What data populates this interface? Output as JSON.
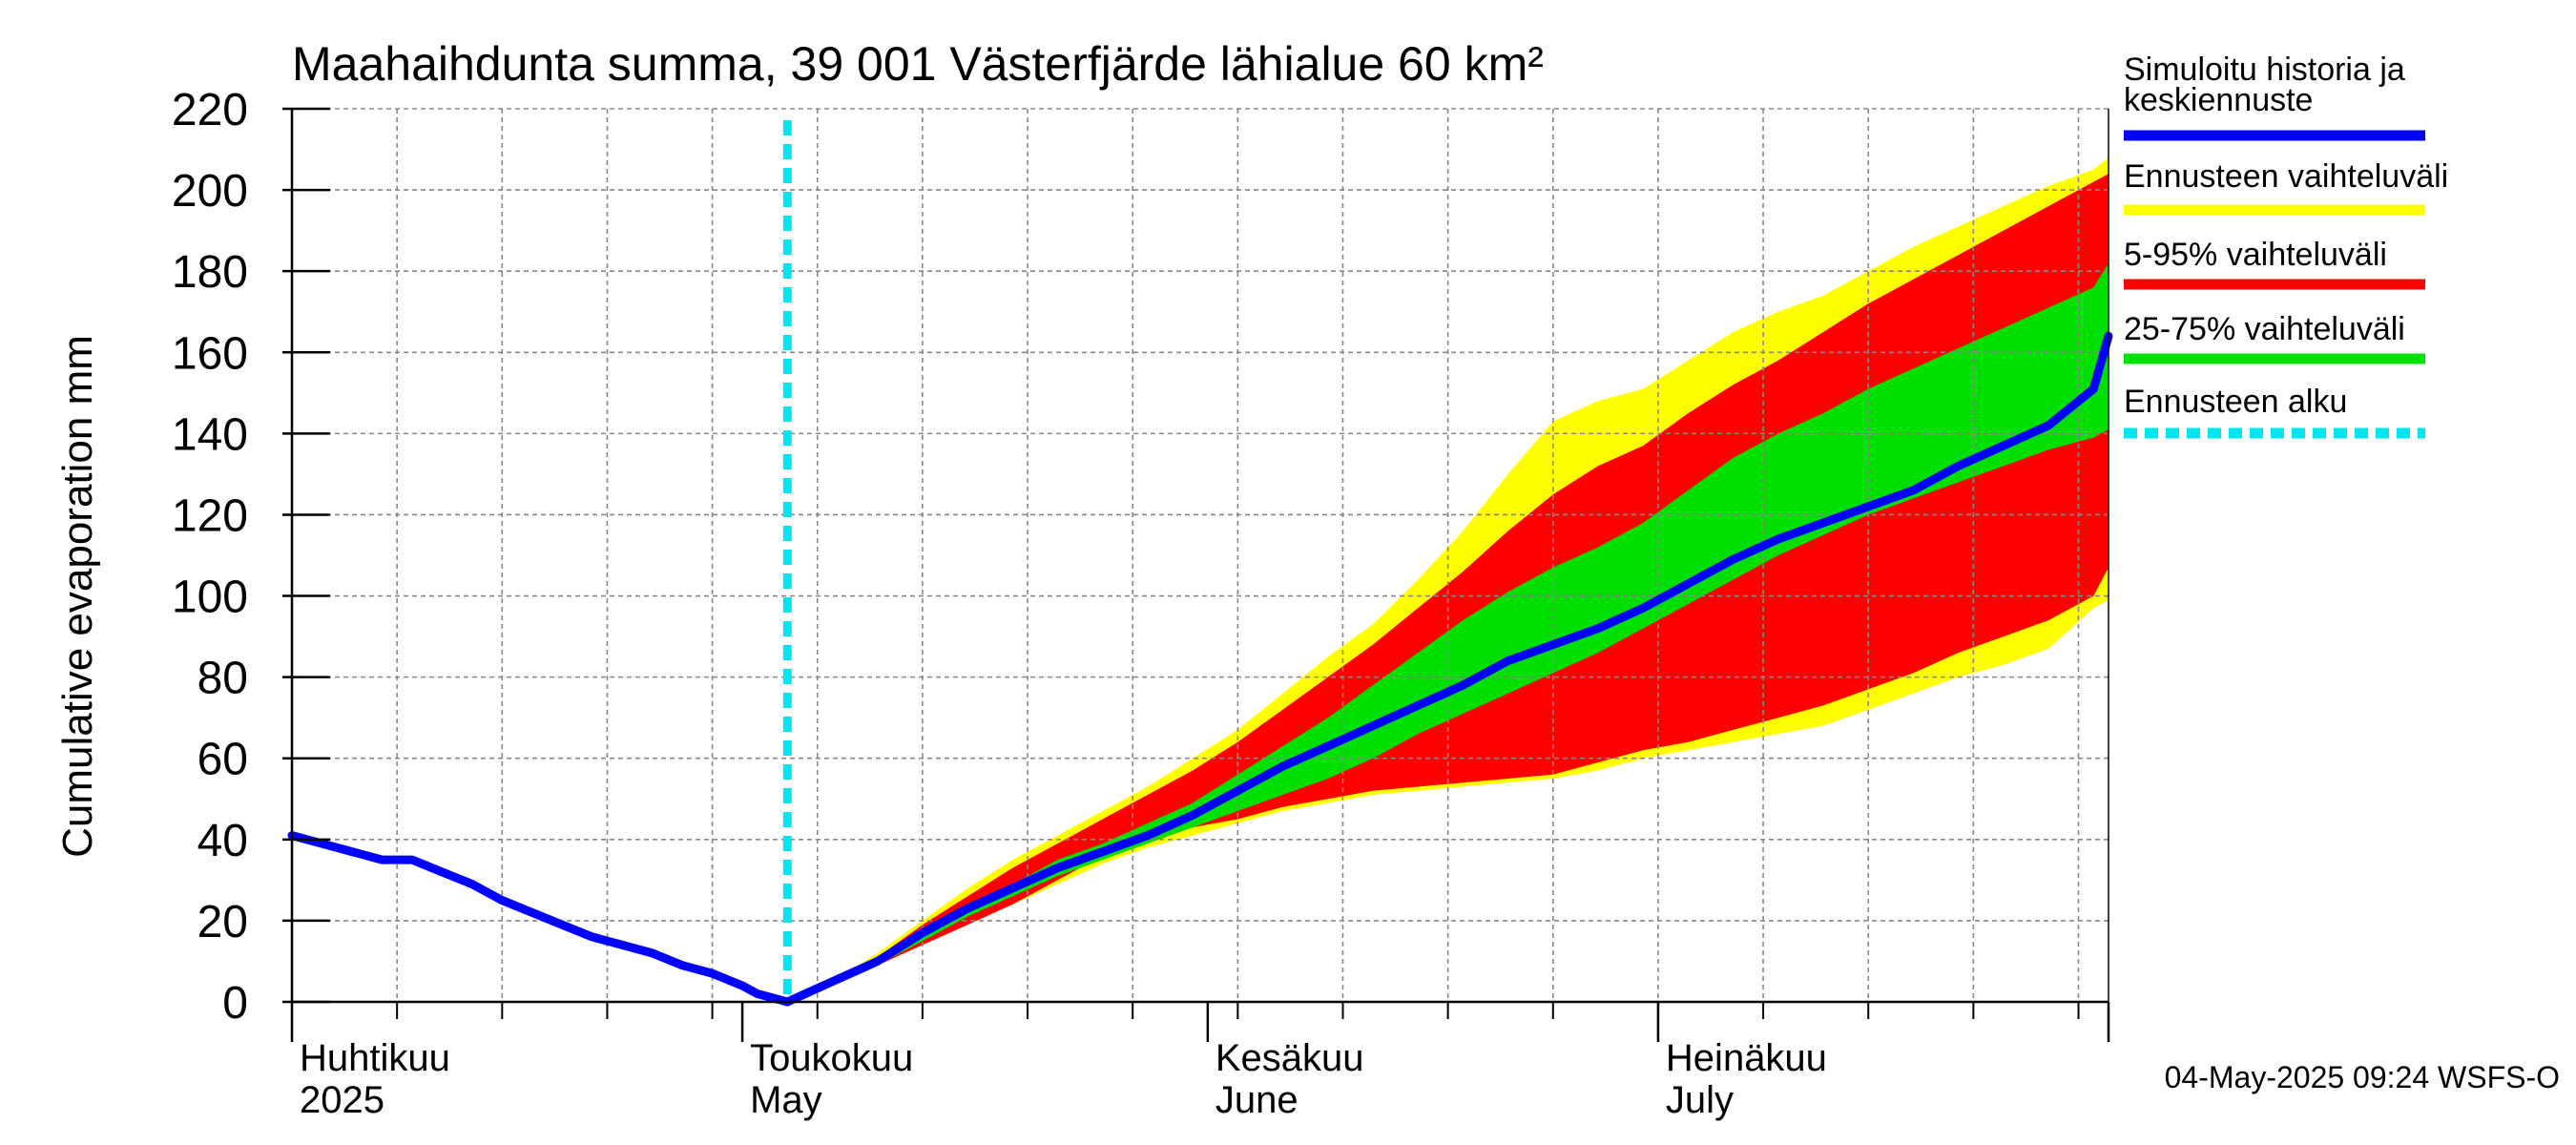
{
  "chart_data": {
    "type": "area",
    "title": "Maahaihdunta summa, 39 001 Västerfjärde lähialue 60 km²",
    "ylabel": "Cumulative evaporation   mm",
    "ylim": [
      0,
      220
    ],
    "yticks": [
      0,
      20,
      40,
      60,
      80,
      100,
      120,
      140,
      160,
      180,
      200,
      220
    ],
    "xlim": [
      "2025-04-01",
      "2025-07-31"
    ],
    "grid": true,
    "month_labels": [
      {
        "date": "2025-04-01",
        "fi": "Huhtikuu",
        "en": "2025"
      },
      {
        "date": "2025-05-01",
        "fi": "Toukokuu",
        "en": "May"
      },
      {
        "date": "2025-06-01",
        "fi": "Kesäkuu",
        "en": "June"
      },
      {
        "date": "2025-07-01",
        "fi": "Heinäkuu",
        "en": "July"
      }
    ],
    "forecast_start": "2025-05-04",
    "history": {
      "name": "Simuloitu historia ja keskiennuste",
      "color": "#0000ff",
      "x": [
        "2025-04-01",
        "2025-04-03",
        "2025-04-05",
        "2025-04-07",
        "2025-04-09",
        "2025-04-11",
        "2025-04-13",
        "2025-04-15",
        "2025-04-17",
        "2025-04-19",
        "2025-04-21",
        "2025-04-23",
        "2025-04-25",
        "2025-04-27",
        "2025-04-29",
        "2025-05-01",
        "2025-05-02",
        "2025-05-03",
        "2025-05-04"
      ],
      "y": [
        41,
        39,
        37,
        35,
        35,
        32,
        29,
        25,
        22,
        19,
        16,
        14,
        12,
        9,
        7,
        4,
        2,
        1,
        0
      ]
    },
    "median": {
      "name": "Simuloitu historia ja keskiennuste",
      "color": "#0000ff",
      "x": [
        "2025-05-04",
        "2025-05-07",
        "2025-05-10",
        "2025-05-13",
        "2025-05-16",
        "2025-05-19",
        "2025-05-22",
        "2025-05-25",
        "2025-05-28",
        "2025-05-31",
        "2025-06-03",
        "2025-06-06",
        "2025-06-09",
        "2025-06-12",
        "2025-06-15",
        "2025-06-18",
        "2025-06-21",
        "2025-06-24",
        "2025-06-27",
        "2025-06-30",
        "2025-07-03",
        "2025-07-06",
        "2025-07-09",
        "2025-07-12",
        "2025-07-15",
        "2025-07-18",
        "2025-07-21",
        "2025-07-24",
        "2025-07-27",
        "2025-07-30",
        "2025-07-31"
      ],
      "y": [
        0,
        5,
        10,
        17,
        23,
        28,
        33,
        37,
        41,
        46,
        52,
        58,
        63,
        68,
        73,
        78,
        84,
        88,
        92,
        97,
        103,
        109,
        114,
        118,
        122,
        126,
        132,
        137,
        142,
        151,
        164
      ]
    },
    "bands": {
      "x": [
        "2025-05-04",
        "2025-05-07",
        "2025-05-10",
        "2025-05-13",
        "2025-05-16",
        "2025-05-19",
        "2025-05-22",
        "2025-05-25",
        "2025-05-28",
        "2025-05-31",
        "2025-06-03",
        "2025-06-06",
        "2025-06-09",
        "2025-06-12",
        "2025-06-15",
        "2025-06-18",
        "2025-06-21",
        "2025-06-24",
        "2025-06-27",
        "2025-06-30",
        "2025-07-03",
        "2025-07-06",
        "2025-07-09",
        "2025-07-12",
        "2025-07-15",
        "2025-07-18",
        "2025-07-21",
        "2025-07-24",
        "2025-07-27",
        "2025-07-30",
        "2025-07-31"
      ],
      "range": {
        "name": "Ennusteen vaihteluväli",
        "color": "#ffff00",
        "low": [
          0,
          4,
          9,
          14,
          19,
          24,
          29,
          34,
          38,
          41,
          44,
          47,
          49,
          51,
          52,
          53,
          54,
          55,
          57,
          60,
          62,
          64,
          66,
          68,
          72,
          76,
          80,
          83,
          87,
          97,
          99
        ],
        "high": [
          0,
          5,
          12,
          20,
          28,
          35,
          41,
          47,
          53,
          60,
          67,
          76,
          85,
          93,
          104,
          116,
          130,
          143,
          148,
          151,
          158,
          165,
          170,
          174,
          180,
          186,
          191,
          196,
          201,
          205,
          208
        ]
      },
      "p5_95": {
        "name": "5-95% vaihteluväli",
        "color": "#ff0000",
        "low": [
          0,
          4,
          9,
          14,
          19,
          24,
          30,
          36,
          40,
          43,
          45,
          48,
          50,
          52,
          53,
          54,
          55,
          56,
          59,
          62,
          64,
          67,
          70,
          73,
          77,
          81,
          86,
          90,
          94,
          100,
          107
        ],
        "high": [
          0,
          5,
          11,
          19,
          26,
          33,
          39,
          45,
          51,
          57,
          64,
          72,
          80,
          88,
          97,
          106,
          116,
          125,
          132,
          137,
          145,
          152,
          158,
          165,
          172,
          178,
          184,
          190,
          196,
          202,
          204
        ]
      },
      "p25_75": {
        "name": "25-75% vaihteluväli",
        "color": "#00e000",
        "low": [
          0,
          4,
          9,
          15,
          21,
          26,
          31,
          35,
          39,
          43,
          47,
          51,
          55,
          60,
          66,
          71,
          76,
          81,
          86,
          92,
          98,
          104,
          110,
          115,
          120,
          124,
          128,
          132,
          136,
          139,
          141
        ],
        "high": [
          0,
          5,
          10,
          17,
          24,
          29,
          35,
          39,
          44,
          49,
          56,
          63,
          70,
          78,
          86,
          94,
          101,
          107,
          112,
          118,
          126,
          134,
          140,
          145,
          151,
          156,
          161,
          166,
          171,
          176,
          182
        ]
      }
    },
    "legend": [
      {
        "label": "Simuloitu historia ja",
        "label2": "keskiennuste",
        "color": "#0000ff",
        "style": "solid"
      },
      {
        "label": "Ennusteen vaihteluväli",
        "label2": "",
        "color": "#ffff00",
        "style": "solid"
      },
      {
        "label": "5-95% vaihteluväli",
        "label2": "",
        "color": "#ff0000",
        "style": "solid"
      },
      {
        "label": "25-75% vaihteluväli",
        "label2": "",
        "color": "#00e000",
        "style": "solid"
      },
      {
        "label": "Ennusteen alku",
        "label2": "",
        "color": "#00e5ee",
        "style": "dashed"
      }
    ],
    "legend_position": "right",
    "forecast_line_color": "#00e5ee",
    "footer": "04-May-2025 09:24 WSFS-O"
  }
}
